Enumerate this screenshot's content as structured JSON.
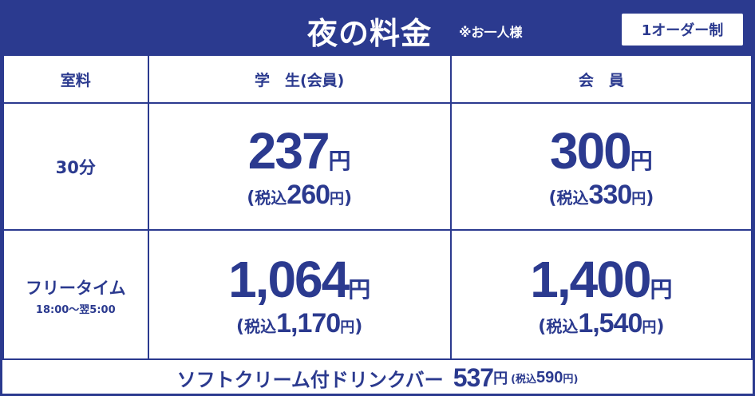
{
  "header": {
    "title": "夜の料金",
    "note": "※お一人様",
    "badge": "1オーダー制"
  },
  "table": {
    "col_room": "室料",
    "col_student": "学　生(会員)",
    "col_member": "会　員",
    "rows": [
      {
        "label": "30分",
        "sublabel": "",
        "student_price": "237",
        "student_tax_price": "260",
        "member_price": "300",
        "member_tax_price": "330"
      },
      {
        "label": "フリータイム",
        "sublabel": "18:00〜翌5:00",
        "student_price": "1,064",
        "student_tax_price": "1,170",
        "member_price": "1,400",
        "member_tax_price": "1,540"
      }
    ]
  },
  "units": {
    "yen": "円",
    "tax_open": "(",
    "tax_label": "税込",
    "tax_close": ")"
  },
  "footer": {
    "item": "ソフトクリーム付ドリンクバー",
    "price": "537",
    "tax_price": "590"
  },
  "colors": {
    "brand_blue": "#2b3a8f",
    "background": "#ffffff"
  }
}
